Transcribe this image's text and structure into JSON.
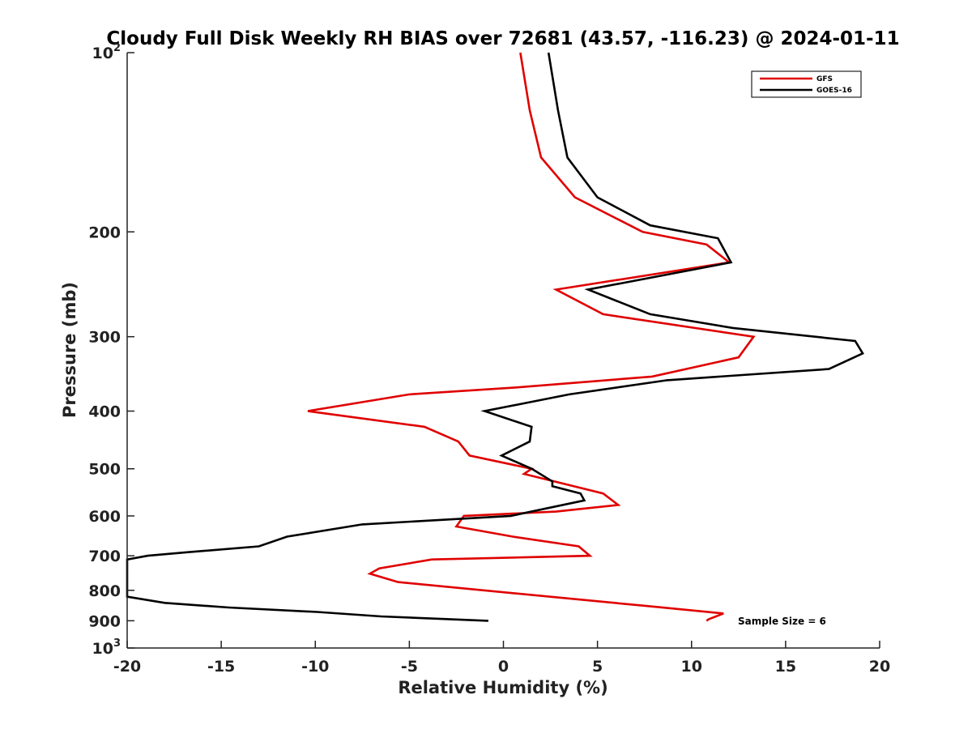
{
  "chart_data": {
    "type": "line",
    "title": "Cloudy Full Disk Weekly RH BIAS over 72681 (43.57, -116.23) @ 2024-01-11",
    "xlabel": "Relative Humidity (%)",
    "ylabel": "Pressure (mb)",
    "xlim": [
      -20,
      20
    ],
    "ylim": [
      100,
      1000
    ],
    "y_scale": "log",
    "y_reversed": true,
    "x_ticks": [
      -20,
      -15,
      -10,
      -5,
      0,
      5,
      10,
      15,
      20
    ],
    "x_tick_labels": [
      "-20",
      "-15",
      "-10",
      "-5",
      "0",
      "5",
      "10",
      "15",
      "20"
    ],
    "y_ticks": [
      100,
      200,
      300,
      400,
      500,
      600,
      700,
      800,
      900,
      1000
    ],
    "y_tick_labels": [
      {
        "base": "10",
        "exp": "2"
      },
      {
        "base": "200",
        "exp": ""
      },
      {
        "base": "300",
        "exp": ""
      },
      {
        "base": "400",
        "exp": ""
      },
      {
        "base": "500",
        "exp": ""
      },
      {
        "base": "600",
        "exp": ""
      },
      {
        "base": "700",
        "exp": ""
      },
      {
        "base": "800",
        "exp": ""
      },
      {
        "base": "900",
        "exp": ""
      },
      {
        "base": "10",
        "exp": "3"
      }
    ],
    "grid": false,
    "legend_position": "top-right",
    "series": [
      {
        "name": "GFS",
        "color": "#e00000",
        "points": [
          [
            0.9,
            100
          ],
          [
            1.4,
            125
          ],
          [
            2.0,
            150
          ],
          [
            3.8,
            175
          ],
          [
            7.4,
            200
          ],
          [
            10.8,
            210
          ],
          [
            12.0,
            225
          ],
          [
            2.8,
            250
          ],
          [
            5.3,
            275
          ],
          [
            13.3,
            300
          ],
          [
            12.5,
            325
          ],
          [
            7.9,
            350
          ],
          [
            0.7,
            365
          ],
          [
            -5.0,
            375
          ],
          [
            -10.4,
            400
          ],
          [
            -4.2,
            425
          ],
          [
            -2.4,
            450
          ],
          [
            -1.8,
            475
          ],
          [
            1.5,
            500
          ],
          [
            1.1,
            510
          ],
          [
            5.3,
            550
          ],
          [
            6.1,
            575
          ],
          [
            2.8,
            590
          ],
          [
            -2.1,
            600
          ],
          [
            -2.5,
            625
          ],
          [
            0.5,
            650
          ],
          [
            4.0,
            675
          ],
          [
            4.6,
            700
          ],
          [
            -3.8,
            710
          ],
          [
            -6.6,
            735
          ],
          [
            -7.1,
            750
          ],
          [
            -5.6,
            775
          ],
          [
            7.6,
            850
          ],
          [
            11.7,
            875
          ],
          [
            10.9,
            895
          ],
          [
            10.8,
            900
          ]
        ]
      },
      {
        "name": "GOES-16",
        "color": "#000000",
        "points": [
          [
            2.4,
            100
          ],
          [
            2.9,
            125
          ],
          [
            3.4,
            150
          ],
          [
            5.0,
            175
          ],
          [
            7.8,
            195
          ],
          [
            11.4,
            205
          ],
          [
            12.1,
            225
          ],
          [
            4.5,
            250
          ],
          [
            7.8,
            275
          ],
          [
            12.2,
            290
          ],
          [
            18.7,
            305
          ],
          [
            19.1,
            320
          ],
          [
            17.3,
            340
          ],
          [
            8.7,
            355
          ],
          [
            3.5,
            375
          ],
          [
            -1.0,
            400
          ],
          [
            1.5,
            425
          ],
          [
            1.4,
            450
          ],
          [
            -0.1,
            475
          ],
          [
            1.5,
            500
          ],
          [
            2.6,
            525
          ],
          [
            2.6,
            535
          ],
          [
            4.1,
            550
          ],
          [
            4.3,
            565
          ],
          [
            0.4,
            600
          ],
          [
            -7.5,
            620
          ],
          [
            -11.5,
            650
          ],
          [
            -13.0,
            675
          ],
          [
            -16.7,
            690
          ],
          [
            -18.9,
            700
          ],
          [
            -20.0,
            710
          ],
          [
            -20.0,
            820
          ],
          [
            -18.0,
            840
          ],
          [
            -14.6,
            855
          ],
          [
            -9.9,
            870
          ],
          [
            -6.5,
            885
          ],
          [
            -0.8,
            900
          ]
        ]
      }
    ],
    "annotations": [
      {
        "text": "Sample Size = 6"
      }
    ]
  }
}
